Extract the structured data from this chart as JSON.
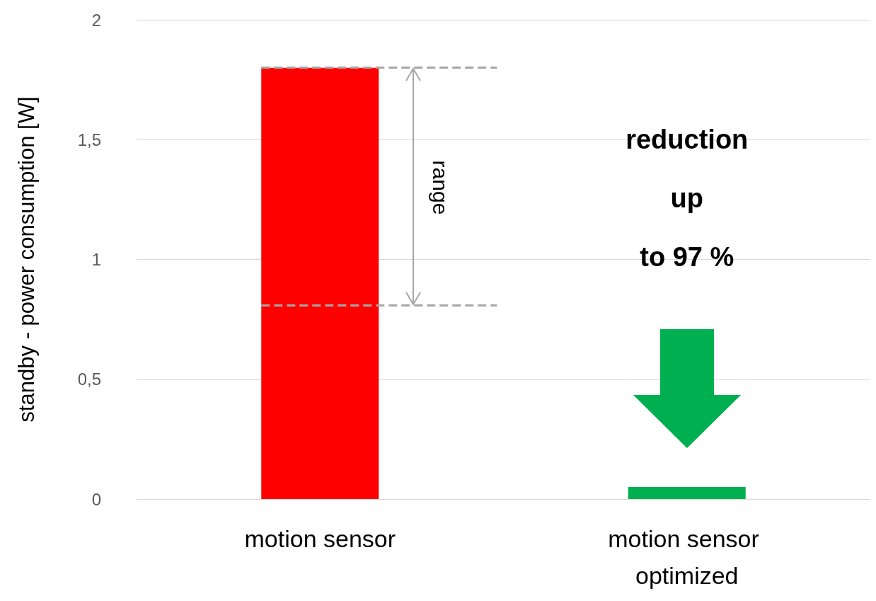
{
  "chart_data": {
    "type": "bar",
    "categories": [
      "motion sensor",
      "motion sensor optimized"
    ],
    "values": [
      1.8,
      0.05
    ],
    "colors": [
      "#ff0000",
      "#00b050"
    ],
    "ylabel": "standby - power consumption [W]",
    "ylim": [
      0,
      2
    ],
    "yticks": [
      0,
      {
        "value": 0.5,
        "label": "0,5"
      },
      1,
      {
        "value": 1.5,
        "label": "1,5"
      },
      2
    ],
    "grid": "y",
    "ref_lines": [
      {
        "axis": "y",
        "value": 1.8,
        "label": null,
        "color": "#a6a6a6",
        "line_style": "dashed"
      },
      {
        "axis": "y",
        "value": 0.81,
        "label": null,
        "color": "#a6a6a6",
        "line_style": "dashed"
      }
    ],
    "annotations": [
      "range",
      "reduction",
      "up",
      "to 97 %"
    ]
  }
}
